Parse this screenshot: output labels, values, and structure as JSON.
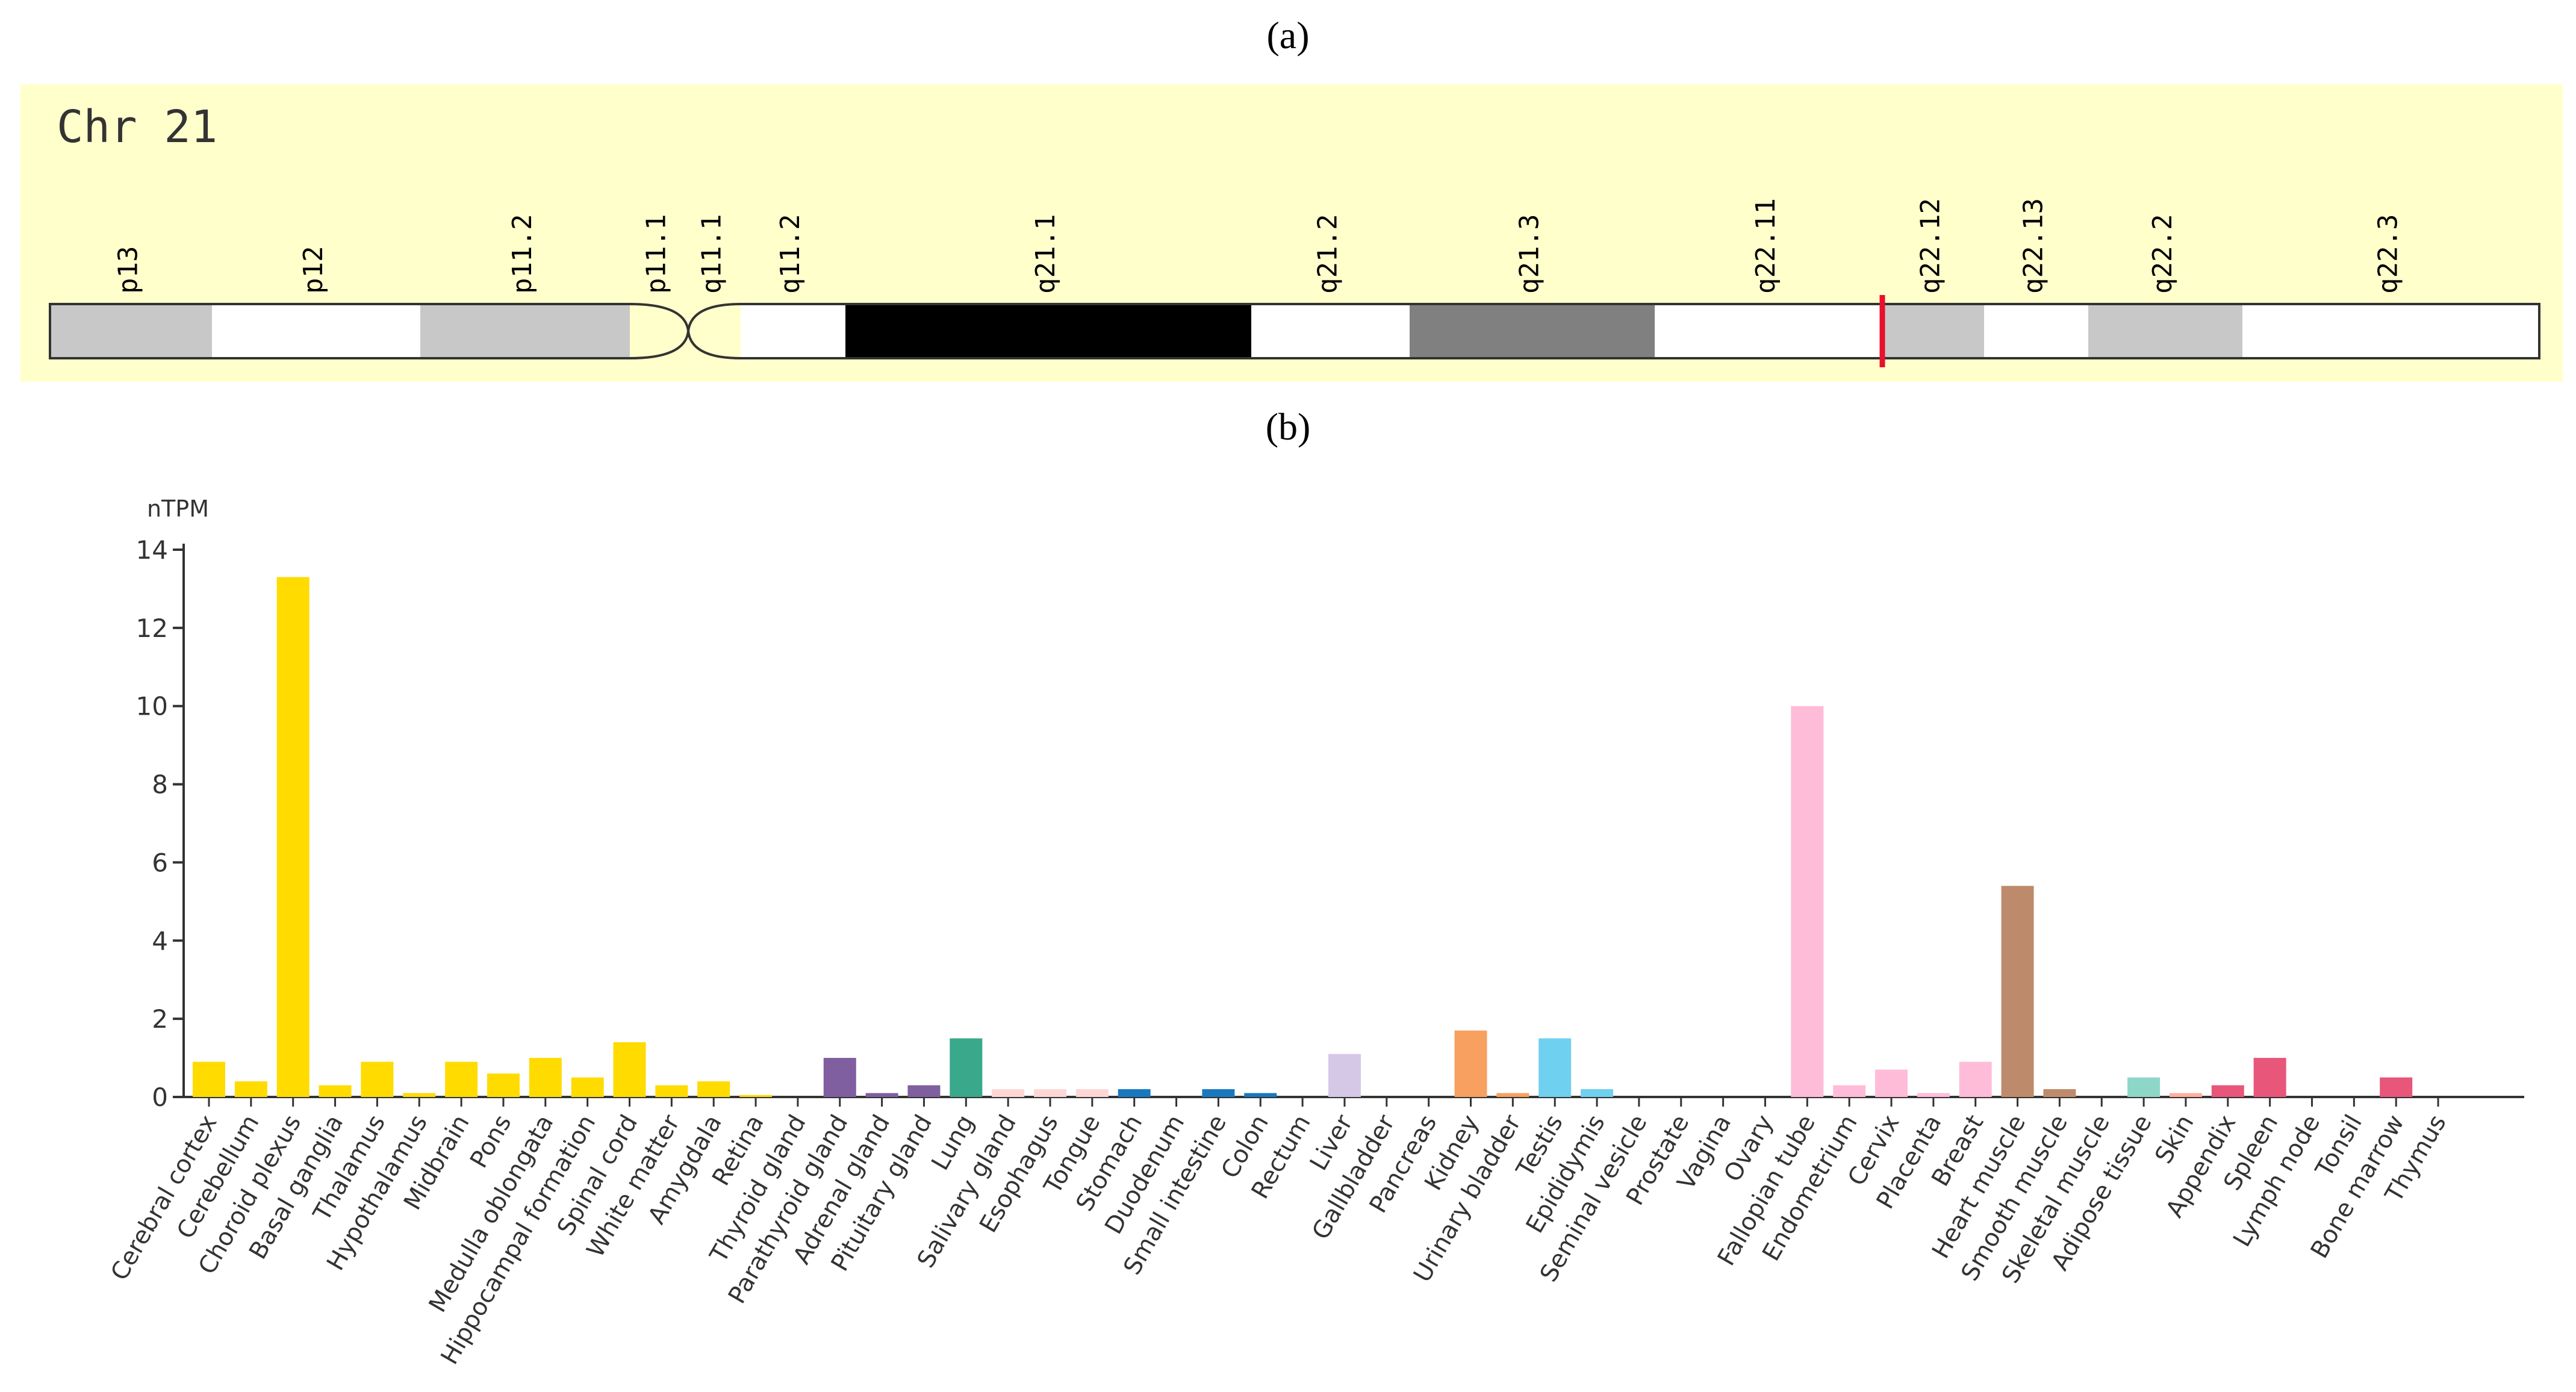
{
  "panel_labels": {
    "a": "(a)",
    "b": "(b)"
  },
  "ideogram": {
    "title": "Chr 21",
    "background": "#ffffcc",
    "marker_color": "#e8102a",
    "marker_band": "q22.12",
    "bands": [
      {
        "name": "p13",
        "stain": "#c8c8c8"
      },
      {
        "name": "p12",
        "stain": "#ffffff"
      },
      {
        "name": "p11.2",
        "stain": "#c8c8c8"
      },
      {
        "name": "p11.1",
        "stain": "#ffffcc"
      },
      {
        "name": "q11.1",
        "stain": "#ffffcc"
      },
      {
        "name": "q11.2",
        "stain": "#ffffff"
      },
      {
        "name": "q21.1",
        "stain": "#000000"
      },
      {
        "name": "q21.2",
        "stain": "#ffffff"
      },
      {
        "name": "q21.3",
        "stain": "#808080"
      },
      {
        "name": "q22.11",
        "stain": "#ffffff"
      },
      {
        "name": "q22.12",
        "stain": "#c8c8c8"
      },
      {
        "name": "q22.13",
        "stain": "#ffffff"
      },
      {
        "name": "q22.2",
        "stain": "#c8c8c8"
      },
      {
        "name": "q22.3",
        "stain": "#ffffff"
      }
    ]
  },
  "chart_data": {
    "type": "bar",
    "title": "",
    "ylabel": "nTPM",
    "xlabel": "",
    "ylim": [
      0,
      14
    ],
    "yticks": [
      0,
      2,
      4,
      6,
      8,
      10,
      12,
      14
    ],
    "grid": false,
    "categories": [
      "Cerebral cortex",
      "Cerebellum",
      "Choroid plexus",
      "Basal ganglia",
      "Thalamus",
      "Hypothalamus",
      "Midbrain",
      "Pons",
      "Medulla oblongata",
      "Hippocampal formation",
      "Spinal cord",
      "White matter",
      "Amygdala",
      "Retina",
      "Thyroid gland",
      "Parathyroid gland",
      "Adrenal gland",
      "Pituitary gland",
      "Lung",
      "Salivary gland",
      "Esophagus",
      "Tongue",
      "Stomach",
      "Duodenum",
      "Small intestine",
      "Colon",
      "Rectum",
      "Liver",
      "Gallbladder",
      "Pancreas",
      "Kidney",
      "Urinary bladder",
      "Testis",
      "Epididymis",
      "Seminal vesicle",
      "Prostate",
      "Vagina",
      "Ovary",
      "Fallopian tube",
      "Endometrium",
      "Cervix",
      "Placenta",
      "Breast",
      "Heart muscle",
      "Smooth muscle",
      "Skeletal muscle",
      "Adipose tissue",
      "Skin",
      "Appendix",
      "Spleen",
      "Lymph node",
      "Tonsil",
      "Bone marrow",
      "Thymus"
    ],
    "values": [
      0.9,
      0.4,
      13.3,
      0.3,
      0.9,
      0.1,
      0.9,
      0.6,
      1.0,
      0.5,
      1.4,
      0.3,
      0.4,
      0.05,
      0,
      1.0,
      0.1,
      0.3,
      1.5,
      0.2,
      0.2,
      0.2,
      0.2,
      0,
      0.2,
      0.1,
      0,
      1.1,
      0,
      0,
      1.7,
      0.1,
      1.5,
      0.2,
      0,
      0,
      0,
      0,
      10.0,
      0.3,
      0.7,
      0.1,
      0.9,
      5.4,
      0.2,
      0,
      0.5,
      0.1,
      0.3,
      1.0,
      0,
      0,
      0.5,
      0
    ],
    "colors": [
      "#ffdb00",
      "#ffdb00",
      "#ffdb00",
      "#ffdb00",
      "#ffdb00",
      "#ffdb00",
      "#ffdb00",
      "#ffdb00",
      "#ffdb00",
      "#ffdb00",
      "#ffdb00",
      "#ffdb00",
      "#ffdb00",
      "#ffdb00",
      "#7f5fa0",
      "#7f5fa0",
      "#7f5fa0",
      "#7f5fa0",
      "#3aa88a",
      "#ffd6d6",
      "#ffd6d6",
      "#ffd6d6",
      "#1878c0",
      "#1878c0",
      "#1878c0",
      "#1878c0",
      "#1878c0",
      "#d5c8e6",
      "#d5c8e6",
      "#d5c8e6",
      "#f8a060",
      "#f8a060",
      "#70d0f0",
      "#70d0f0",
      "#70d0f0",
      "#ffbcd8",
      "#ffbcd8",
      "#ffbcd8",
      "#ffbcd8",
      "#ffbcd8",
      "#ffbcd8",
      "#ffbcd8",
      "#ffbcd8",
      "#bd8b6b",
      "#bd8b6b",
      "#bd8b6b",
      "#8ed6c8",
      "#ffb0a0",
      "#e8567a",
      "#e8567a",
      "#e8567a",
      "#e8567a",
      "#e8567a",
      "#e8567a"
    ]
  }
}
